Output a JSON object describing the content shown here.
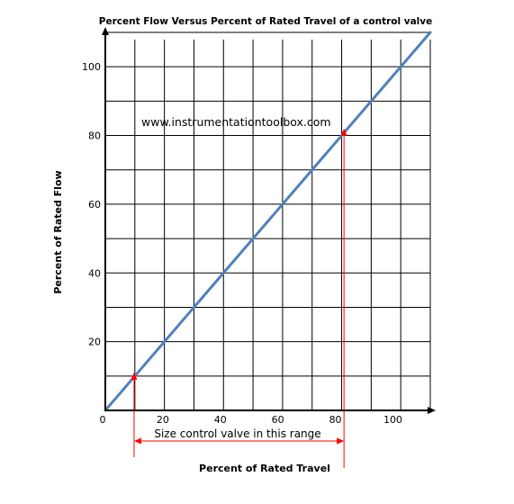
{
  "chart_data": {
    "type": "line",
    "title": "Percent Flow Versus Percent of Rated Travel of a control valve",
    "xlabel": "Percent of Rated Travel",
    "ylabel": "Percent of Rated Flow",
    "xlim": [
      0,
      113
    ],
    "ylim": [
      0,
      110
    ],
    "x_ticks": [
      0,
      20,
      40,
      60,
      80,
      100
    ],
    "x_tick_labels": [
      "0",
      "20",
      "40",
      "60",
      "80",
      "100"
    ],
    "y_ticks": [
      20,
      40,
      60,
      80,
      100
    ],
    "y_tick_labels": [
      "20",
      "40",
      "60",
      "80",
      "100"
    ],
    "grid": true,
    "series": [
      {
        "x": [
          0,
          113
        ],
        "y": [
          0,
          110
        ],
        "color": "#4f81bd"
      }
    ],
    "annotations": {
      "watermark": "www.instrumentationtoolbox.com",
      "range_label": "Size control valve in this range",
      "range_start_x": 10,
      "range_end_x": 83,
      "range_start_y": 10,
      "range_end_y": 81,
      "marker_color": "#ff0000"
    }
  }
}
